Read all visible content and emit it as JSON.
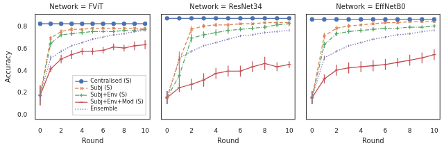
{
  "chart_data": [
    {
      "type": "line",
      "title": "Network = FViT",
      "ylabel": "Accuracy",
      "xlabel": "Round",
      "x": [
        0,
        1,
        2,
        3,
        4,
        5,
        6,
        7,
        8,
        9,
        10
      ],
      "xlim": [
        -0.5,
        10.5
      ],
      "xticks": [
        0,
        2,
        4,
        6,
        8,
        10
      ],
      "ylim": [
        -0.04,
        0.92
      ],
      "yticks": [
        {
          "value": 0,
          "label": "0.0"
        },
        0.2,
        0.4,
        0.6,
        0.8
      ],
      "grid": false,
      "legend": "lower right",
      "series": [
        {
          "name": "Centralised (S)",
          "color": "#4c72b0",
          "marker": "circle",
          "line_style": "solid",
          "values": [
            0.83,
            0.83,
            0.83,
            0.83,
            0.83,
            0.83,
            0.83,
            0.83,
            0.83,
            0.83,
            0.83
          ],
          "errors": [
            0.005,
            0.005,
            0.005,
            0.005,
            0.005,
            0.005,
            0.005,
            0.005,
            0.005,
            0.005,
            0.005
          ]
        },
        {
          "name": "Subj (S)",
          "color": "#dd8452",
          "marker": "x",
          "line_style": "dashed",
          "values": [
            0.18,
            0.7,
            0.76,
            0.78,
            0.78,
            0.79,
            0.79,
            0.79,
            0.79,
            0.79,
            0.79
          ],
          "errors": [
            0.09,
            0.02,
            0.02,
            0.02,
            0.01,
            0.01,
            0.01,
            0.01,
            0.01,
            0.01,
            0.01
          ]
        },
        {
          "name": "Subj+Env (S)",
          "color": "#55a868",
          "marker": "cross",
          "line_style": "dashdot",
          "values": [
            0.18,
            0.65,
            0.73,
            0.74,
            0.75,
            0.76,
            0.76,
            0.76,
            0.77,
            0.77,
            0.78
          ],
          "errors": [
            0.09,
            0.03,
            0.02,
            0.02,
            0.02,
            0.02,
            0.01,
            0.01,
            0.01,
            0.01,
            0.01
          ]
        },
        {
          "name": "Subj+Env+Mod (S)",
          "color": "#c44e52",
          "marker": "line",
          "line_style": "solid",
          "values": [
            0.18,
            0.42,
            0.51,
            0.55,
            0.58,
            0.58,
            0.59,
            0.62,
            0.61,
            0.63,
            0.64
          ],
          "errors": [
            0.09,
            0.03,
            0.04,
            0.04,
            0.03,
            0.03,
            0.03,
            0.03,
            0.03,
            0.04,
            0.04
          ]
        },
        {
          "name": "Ensemble",
          "color": "#8172b3",
          "marker": "none",
          "line_style": "dotted",
          "values": [
            0.18,
            0.52,
            0.58,
            0.63,
            0.66,
            0.69,
            0.71,
            0.73,
            0.74,
            0.76,
            0.77
          ],
          "errors": [
            0.05,
            0.02,
            0.01,
            0.01,
            0.01,
            0.01,
            0.01,
            0.01,
            0.01,
            0.01,
            0.01
          ]
        }
      ]
    },
    {
      "type": "line",
      "title": "Network = ResNet34",
      "xlabel": "Round",
      "x": [
        0,
        1,
        2,
        3,
        4,
        5,
        6,
        7,
        8,
        9,
        10
      ],
      "xlim": [
        -0.5,
        10.5
      ],
      "xticks": [
        0,
        2,
        4,
        6,
        8,
        10
      ],
      "ylim": [
        -0.04,
        0.92
      ],
      "yticks": [
        {
          "value": 0,
          "label": "0.0"
        },
        0.2,
        0.4,
        0.6,
        0.8
      ],
      "grid": false,
      "tick_labels": "x",
      "series": [
        {
          "name": "Centralised (S)",
          "color": "#4c72b0",
          "marker": "circle",
          "line_style": "solid",
          "values": [
            0.88,
            0.88,
            0.88,
            0.88,
            0.88,
            0.88,
            0.88,
            0.88,
            0.88,
            0.88,
            0.88
          ],
          "errors": [
            0.005,
            0.005,
            0.005,
            0.005,
            0.005,
            0.005,
            0.005,
            0.005,
            0.005,
            0.005,
            0.005
          ]
        },
        {
          "name": "Subj (S)",
          "color": "#dd8452",
          "marker": "x",
          "line_style": "dashed",
          "values": [
            0.16,
            0.5,
            0.78,
            0.81,
            0.82,
            0.82,
            0.83,
            0.83,
            0.84,
            0.84,
            0.84
          ],
          "errors": [
            0.06,
            0.08,
            0.03,
            0.02,
            0.02,
            0.02,
            0.01,
            0.01,
            0.01,
            0.01,
            0.01
          ]
        },
        {
          "name": "Subj+Env (S)",
          "color": "#55a868",
          "marker": "cross",
          "line_style": "dashdot",
          "values": [
            0.16,
            0.36,
            0.7,
            0.73,
            0.75,
            0.77,
            0.78,
            0.79,
            0.8,
            0.82,
            0.83
          ],
          "errors": [
            0.06,
            0.08,
            0.04,
            0.03,
            0.03,
            0.03,
            0.02,
            0.02,
            0.02,
            0.02,
            0.02
          ]
        },
        {
          "name": "Subj+Env+Mod (S)",
          "color": "#c44e52",
          "marker": "line",
          "line_style": "solid",
          "values": [
            0.16,
            0.25,
            0.28,
            0.32,
            0.38,
            0.4,
            0.4,
            0.44,
            0.47,
            0.44,
            0.46
          ],
          "errors": [
            0.06,
            0.04,
            0.05,
            0.06,
            0.05,
            0.05,
            0.05,
            0.05,
            0.06,
            0.04,
            0.03
          ]
        },
        {
          "name": "Ensemble",
          "color": "#8172b3",
          "marker": "none",
          "line_style": "dotted",
          "values": [
            0.16,
            0.52,
            0.58,
            0.63,
            0.66,
            0.69,
            0.72,
            0.73,
            0.75,
            0.76,
            0.77
          ],
          "errors": [
            0.05,
            0.02,
            0.01,
            0.01,
            0.01,
            0.01,
            0.01,
            0.01,
            0.01,
            0.01,
            0.01
          ]
        }
      ]
    },
    {
      "type": "line",
      "title": "Network = EffNetB0",
      "xlabel": "Round",
      "x": [
        0,
        1,
        2,
        3,
        4,
        5,
        6,
        7,
        8,
        9,
        10
      ],
      "xlim": [
        -0.5,
        10.5
      ],
      "xticks": [
        0,
        2,
        4,
        6,
        8,
        10
      ],
      "ylim": [
        -0.04,
        0.92
      ],
      "yticks": [
        {
          "value": 0,
          "label": "0.0"
        },
        0.2,
        0.4,
        0.6,
        0.8
      ],
      "grid": false,
      "tick_labels": "x",
      "series": [
        {
          "name": "Centralised (S)",
          "color": "#4c72b0",
          "marker": "circle",
          "line_style": "solid",
          "values": [
            0.87,
            0.87,
            0.87,
            0.87,
            0.87,
            0.87,
            0.87,
            0.87,
            0.87,
            0.87,
            0.87
          ],
          "errors": [
            0.005,
            0.005,
            0.005,
            0.005,
            0.005,
            0.005,
            0.005,
            0.005,
            0.005,
            0.005,
            0.005
          ]
        },
        {
          "name": "Subj (S)",
          "color": "#dd8452",
          "marker": "x",
          "line_style": "dashed",
          "values": [
            0.16,
            0.72,
            0.79,
            0.81,
            0.82,
            0.83,
            0.84,
            0.84,
            0.85,
            0.85,
            0.85
          ],
          "errors": [
            0.06,
            0.03,
            0.02,
            0.02,
            0.01,
            0.01,
            0.01,
            0.01,
            0.01,
            0.01,
            0.01
          ]
        },
        {
          "name": "Subj+Env (S)",
          "color": "#55a868",
          "marker": "cross",
          "line_style": "dashdot",
          "values": [
            0.16,
            0.64,
            0.74,
            0.76,
            0.77,
            0.78,
            0.79,
            0.79,
            0.8,
            0.8,
            0.81
          ],
          "errors": [
            0.06,
            0.03,
            0.02,
            0.02,
            0.02,
            0.02,
            0.02,
            0.01,
            0.01,
            0.01,
            0.01
          ]
        },
        {
          "name": "Subj+Env+Mod (S)",
          "color": "#c44e52",
          "marker": "line",
          "line_style": "solid",
          "values": [
            0.16,
            0.33,
            0.41,
            0.43,
            0.44,
            0.45,
            0.46,
            0.48,
            0.5,
            0.52,
            0.55
          ],
          "errors": [
            0.06,
            0.04,
            0.05,
            0.05,
            0.05,
            0.05,
            0.05,
            0.04,
            0.05,
            0.05,
            0.05
          ]
        },
        {
          "name": "Ensemble",
          "color": "#8172b3",
          "marker": "none",
          "line_style": "dotted",
          "values": [
            0.16,
            0.52,
            0.58,
            0.63,
            0.66,
            0.69,
            0.71,
            0.73,
            0.74,
            0.76,
            0.77
          ],
          "errors": [
            0.05,
            0.02,
            0.01,
            0.01,
            0.01,
            0.01,
            0.01,
            0.01,
            0.01,
            0.01,
            0.01
          ]
        }
      ]
    }
  ]
}
